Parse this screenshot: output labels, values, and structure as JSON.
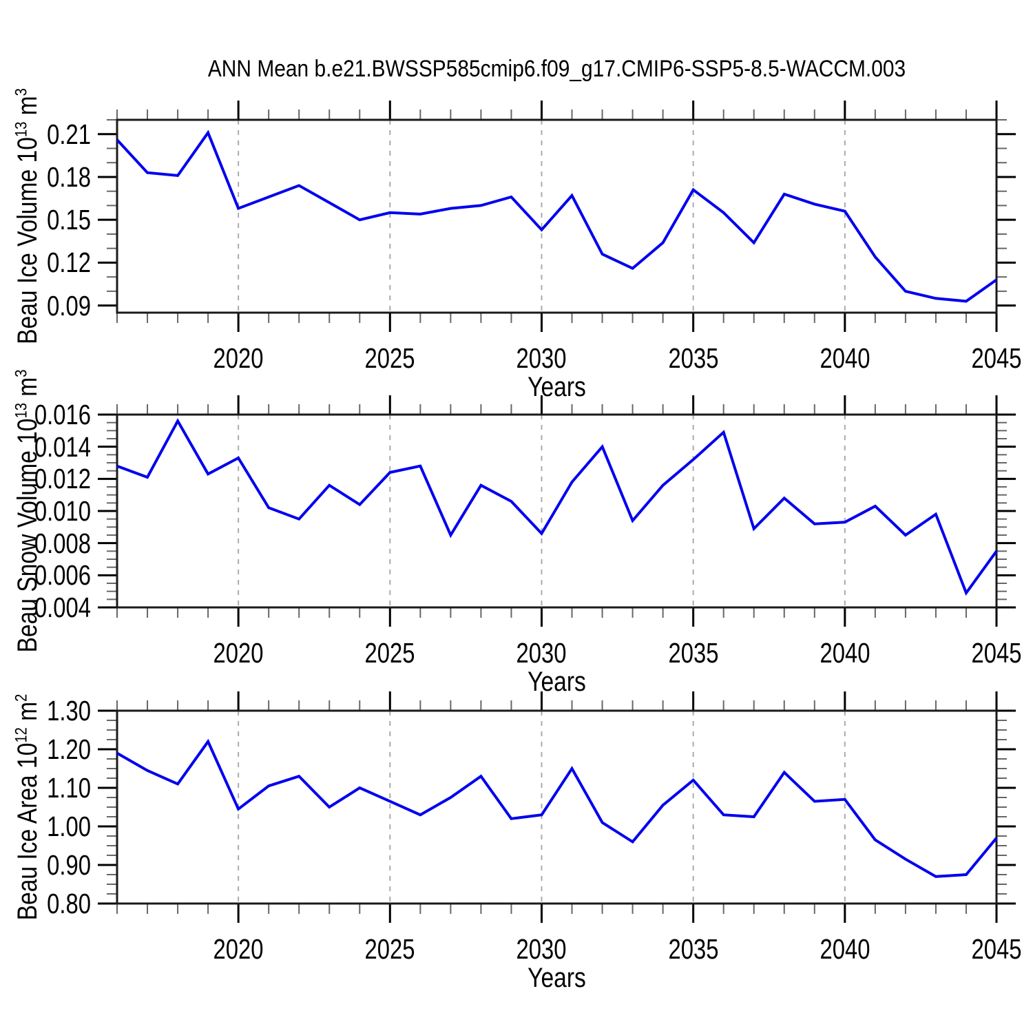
{
  "title": "ANN Mean b.e21.BWSSP585cmip6.f09_g17.CMIP6-SSP5-8.5-WACCM.003",
  "colors": {
    "line": "#0000ee",
    "grid": "#aaaaaa",
    "frame": "#1a1a1a",
    "tick_major": "#000000",
    "tick_minor": "#666666",
    "text": "#000000"
  },
  "chart_data": [
    {
      "type": "line",
      "ylabel": "Beau Ice Volume 10^13 m^3",
      "ylabel_parts": [
        {
          "text": "Beau Ice Volume 10"
        },
        {
          "sup": "13"
        },
        {
          "text": " m"
        },
        {
          "sup": "3"
        }
      ],
      "xlabel": "Years",
      "xlim": [
        2016,
        2045
      ],
      "ylim": [
        0.085,
        0.22
      ],
      "xticks": [
        2020,
        2025,
        2030,
        2035,
        2040,
        2045
      ],
      "grid_x": [
        2020,
        2025,
        2030,
        2035,
        2040
      ],
      "x_minor_step": 1,
      "yticks": [
        0.09,
        0.12,
        0.15,
        0.18,
        0.21
      ],
      "ytick_labels": [
        "0.09",
        "0.12",
        "0.15",
        "0.18",
        "0.21"
      ],
      "y_minor_step": 0.01,
      "x": [
        2016,
        2017,
        2018,
        2019,
        2020,
        2021,
        2022,
        2023,
        2024,
        2025,
        2026,
        2027,
        2028,
        2029,
        2030,
        2031,
        2032,
        2033,
        2034,
        2035,
        2036,
        2037,
        2038,
        2039,
        2040,
        2041,
        2042,
        2043,
        2044,
        2045
      ],
      "values": [
        0.206,
        0.183,
        0.181,
        0.211,
        0.158,
        0.166,
        0.174,
        0.162,
        0.15,
        0.155,
        0.154,
        0.158,
        0.16,
        0.166,
        0.143,
        0.167,
        0.126,
        0.116,
        0.134,
        0.171,
        0.155,
        0.134,
        0.168,
        0.161,
        0.156,
        0.124,
        0.1,
        0.095,
        0.093,
        0.108
      ]
    },
    {
      "type": "line",
      "ylabel": "Beau Snow Volume 10^13 m^3",
      "ylabel_parts": [
        {
          "text": "Beau Snow Volume 10"
        },
        {
          "sup": "13"
        },
        {
          "text": " m"
        },
        {
          "sup": "3"
        }
      ],
      "xlabel": "Years",
      "xlim": [
        2016,
        2045
      ],
      "ylim": [
        0.004,
        0.016
      ],
      "xticks": [
        2020,
        2025,
        2030,
        2035,
        2040,
        2045
      ],
      "grid_x": [
        2020,
        2025,
        2030,
        2035,
        2040
      ],
      "x_minor_step": 1,
      "yticks": [
        0.004,
        0.006,
        0.008,
        0.01,
        0.012,
        0.014,
        0.016
      ],
      "ytick_labels": [
        "0.004",
        "0.006",
        "0.008",
        "0.010",
        "0.012",
        "0.014",
        "0.016"
      ],
      "y_minor_step": 0.0005,
      "x": [
        2016,
        2017,
        2018,
        2019,
        2020,
        2021,
        2022,
        2023,
        2024,
        2025,
        2026,
        2027,
        2028,
        2029,
        2030,
        2031,
        2032,
        2033,
        2034,
        2035,
        2036,
        2037,
        2038,
        2039,
        2040,
        2041,
        2042,
        2043,
        2044,
        2045
      ],
      "values": [
        0.0128,
        0.0121,
        0.0156,
        0.0123,
        0.0133,
        0.0102,
        0.0095,
        0.0116,
        0.0104,
        0.0124,
        0.0128,
        0.0085,
        0.0116,
        0.0106,
        0.0086,
        0.0118,
        0.014,
        0.0094,
        0.0116,
        0.0132,
        0.0149,
        0.0089,
        0.0108,
        0.0092,
        0.0093,
        0.0103,
        0.0085,
        0.0098,
        0.0049,
        0.0075
      ]
    },
    {
      "type": "line",
      "ylabel": "Beau Ice Area 10^12 m^2",
      "ylabel_parts": [
        {
          "text": "Beau Ice Area 10"
        },
        {
          "sup": "12"
        },
        {
          "text": " m"
        },
        {
          "sup": "2"
        }
      ],
      "xlabel": "Years",
      "xlim": [
        2016,
        2045
      ],
      "ylim": [
        0.8,
        1.3
      ],
      "xticks": [
        2020,
        2025,
        2030,
        2035,
        2040,
        2045
      ],
      "grid_x": [
        2020,
        2025,
        2030,
        2035,
        2040
      ],
      "x_minor_step": 1,
      "yticks": [
        0.8,
        0.9,
        1.0,
        1.1,
        1.2,
        1.3
      ],
      "ytick_labels": [
        "0.80",
        "0.90",
        "1.00",
        "1.10",
        "1.20",
        "1.30"
      ],
      "y_minor_step": 0.025,
      "x": [
        2016,
        2017,
        2018,
        2019,
        2020,
        2021,
        2022,
        2023,
        2024,
        2025,
        2026,
        2027,
        2028,
        2029,
        2030,
        2031,
        2032,
        2033,
        2034,
        2035,
        2036,
        2037,
        2038,
        2039,
        2040,
        2041,
        2042,
        2043,
        2044,
        2045
      ],
      "values": [
        1.19,
        1.145,
        1.11,
        1.22,
        1.045,
        1.105,
        1.13,
        1.05,
        1.1,
        1.065,
        1.03,
        1.075,
        1.13,
        1.02,
        1.03,
        1.15,
        1.01,
        0.96,
        1.055,
        1.12,
        1.03,
        1.025,
        1.14,
        1.065,
        1.07,
        0.965,
        0.915,
        0.87,
        0.875,
        0.97
      ]
    }
  ]
}
